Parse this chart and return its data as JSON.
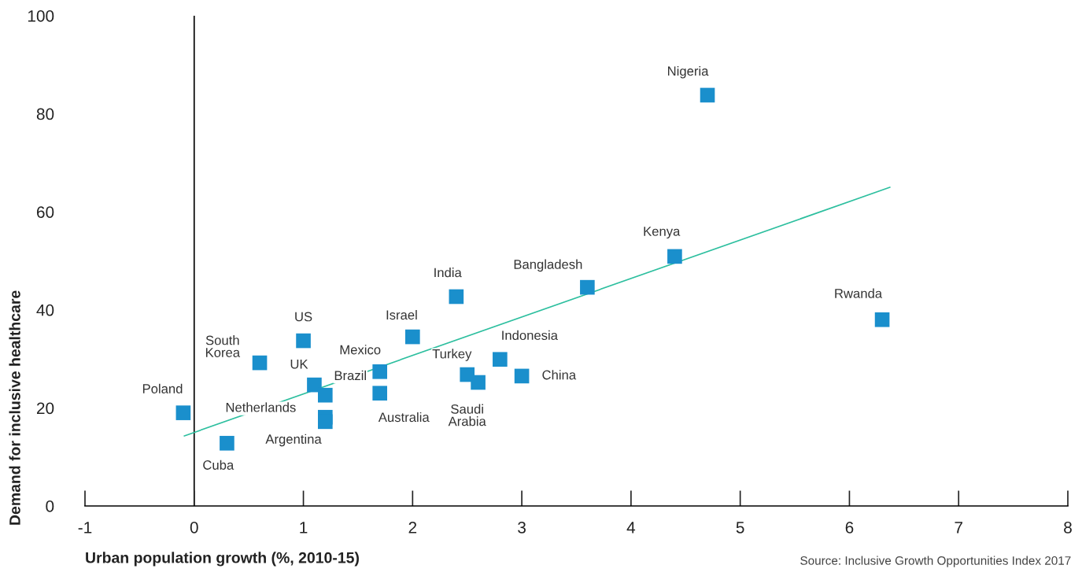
{
  "chart_data": {
    "type": "scatter",
    "xlabel": "Urban population growth (%, 2010-15)",
    "ylabel": "Demand for inclusive healthcare",
    "xlim": [
      -1,
      8
    ],
    "xticks": [
      -1,
      0,
      1,
      2,
      3,
      4,
      5,
      6,
      7,
      8
    ],
    "ylim": [
      0,
      100
    ],
    "yticks": [
      0,
      20,
      40,
      60,
      80,
      100
    ],
    "grid": false,
    "legend": false,
    "marker": "square",
    "series": [
      {
        "color": "#1a8fcc",
        "x": [
          -0.1,
          0.3,
          0.6,
          1.0,
          1.1,
          1.2,
          1.2,
          1.2,
          1.7,
          1.7,
          2.0,
          2.4,
          2.5,
          2.6,
          2.8,
          3.0,
          3.6,
          4.4,
          4.7,
          6.3
        ],
        "values": [
          19,
          12.8,
          29.2,
          33.7,
          24.7,
          22.6,
          18.1,
          17.2,
          27.4,
          23.0,
          34.5,
          42.7,
          26.8,
          25.2,
          29.9,
          26.5,
          44.6,
          50.9,
          83.8,
          38.0
        ],
        "value_labels": [
          "Poland",
          "Cuba",
          "South\nKorea",
          "US",
          "UK",
          "Brazil",
          "Netherlands",
          "Argentina",
          "Mexico",
          "Australia",
          "Israel",
          "India",
          "Turkey",
          "Saudi\nArabia",
          "Indonesia",
          "China",
          "Bangladesh",
          "Kenya",
          "Nigeria",
          "Rwanda"
        ]
      },
      {
        "type": "line",
        "color": "#2dbf9f",
        "line_style": "solid",
        "marker": "none",
        "x": [
          -0.09,
          6.37
        ],
        "values": [
          14.3,
          65.0
        ]
      }
    ],
    "ref_lines": [
      {
        "axis": "x",
        "value": 0,
        "color": "#000000",
        "line_style": "solid"
      }
    ],
    "annotations": [
      "Source: Inclusive Growth Opportunities Index 2017"
    ]
  }
}
